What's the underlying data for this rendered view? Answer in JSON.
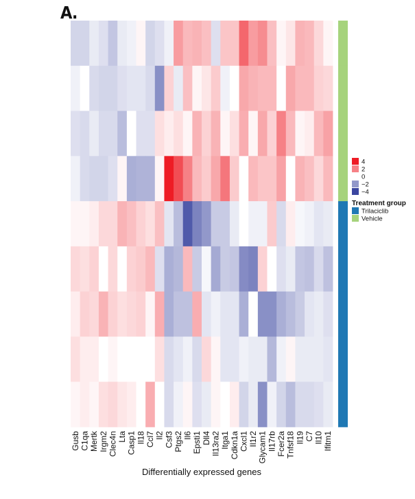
{
  "panel_label": "A.",
  "chart_data": {
    "type": "heatmap",
    "title": "",
    "xlabel": "Differentially expressed genes",
    "ylabel": "",
    "columns": [
      "Gusb",
      "C1qa",
      "Mertk",
      "Irgm2",
      "Clec4n",
      "Lta",
      "Casp1",
      "Il18",
      "Ccl7",
      "Il2",
      "Csf3",
      "Ptgs2",
      "Il6",
      "Epsti1",
      "Dll4",
      "Il13ra2",
      "Itga1",
      "Cdkn1a",
      "Cxcl1",
      "Il1r2",
      "Glycam1",
      "Il17rb",
      "Fcer2a",
      "Tnfsf18",
      "Il19",
      "C7",
      "Il10",
      "Ifitm1"
    ],
    "rows": [
      {
        "group": "Vehicle",
        "values": [
          -0.7,
          -0.7,
          -0.3,
          -0.5,
          -1.0,
          -0.3,
          -0.2,
          0.1,
          -0.7,
          -0.5,
          -0.2,
          1.5,
          1.0,
          1.1,
          0.9,
          -0.5,
          0.8,
          0.8,
          2.5,
          1.5,
          1.8,
          0.9,
          0.1,
          0.3,
          1.1,
          1.0,
          0.5,
          0.1
        ]
      },
      {
        "group": "Vehicle",
        "values": [
          -0.2,
          0.0,
          -0.6,
          -0.7,
          -0.7,
          -0.5,
          -0.4,
          -0.4,
          -0.6,
          -2.2,
          0.6,
          -0.3,
          0.9,
          0.1,
          0.3,
          0.7,
          -0.2,
          0.0,
          1.3,
          1.1,
          1.0,
          1.0,
          0.0,
          1.3,
          1.0,
          1.0,
          0.6,
          0.5
        ]
      },
      {
        "group": "Vehicle",
        "values": [
          -0.5,
          -0.6,
          -0.3,
          -0.6,
          -0.6,
          -1.2,
          0.0,
          -0.5,
          -0.5,
          0.4,
          0.2,
          0.4,
          0.1,
          1.1,
          0.6,
          1.1,
          0.1,
          0.4,
          1.2,
          0.1,
          1.3,
          0.6,
          2.0,
          1.0,
          0.1,
          0.2,
          1.0,
          1.4
        ]
      },
      {
        "group": "Vehicle",
        "values": [
          -0.2,
          -0.6,
          -0.7,
          -0.7,
          -0.5,
          0.1,
          -1.5,
          -1.4,
          -1.4,
          0.1,
          4.0,
          3.0,
          2.0,
          1.0,
          0.7,
          1.3,
          2.2,
          0.7,
          0.0,
          1.0,
          0.8,
          0.8,
          1.4,
          0.0,
          1.1,
          0.9,
          0.5,
          1.0
        ]
      },
      {
        "group": "Trilaciclib",
        "values": [
          0.1,
          0.1,
          0.2,
          0.5,
          0.5,
          1.1,
          0.9,
          0.6,
          0.4,
          0.9,
          -0.4,
          -1.2,
          -3.5,
          -2.5,
          -2.0,
          -0.9,
          -0.9,
          -0.3,
          0.0,
          -0.2,
          -0.2,
          0.7,
          -0.6,
          0.2,
          -0.1,
          -0.2,
          -0.4,
          -0.3
        ]
      },
      {
        "group": "Trilaciclib",
        "values": [
          0.5,
          0.4,
          0.6,
          0.0,
          0.5,
          0.0,
          0.6,
          0.7,
          1.0,
          -0.5,
          -1.5,
          -1.3,
          1.0,
          -0.9,
          -0.1,
          -1.6,
          -0.9,
          -1.0,
          -2.3,
          -2.5,
          0.6,
          0.0,
          -0.5,
          -0.3,
          -1.0,
          -1.1,
          -0.6,
          -1.1
        ]
      },
      {
        "group": "Trilaciclib",
        "values": [
          0.2,
          0.6,
          0.5,
          1.1,
          0.6,
          0.4,
          0.5,
          0.6,
          0.1,
          1.2,
          -1.5,
          -1.1,
          -1.1,
          1.2,
          -0.4,
          -0.2,
          -0.4,
          -0.4,
          -1.5,
          0.0,
          -2.2,
          -2.2,
          -1.5,
          -1.2,
          -0.9,
          -0.4,
          -0.3,
          -0.5
        ]
      },
      {
        "group": "Trilaciclib",
        "values": [
          0.4,
          0.2,
          0.2,
          0.0,
          0.1,
          0.0,
          0.0,
          0.0,
          0.0,
          0.4,
          -0.6,
          -0.4,
          -0.2,
          -0.6,
          0.5,
          0.1,
          -0.4,
          -0.4,
          -0.2,
          -0.3,
          -0.3,
          -1.3,
          -0.2,
          0.1,
          -0.3,
          -0.3,
          -0.3,
          -0.4
        ]
      },
      {
        "group": "Trilaciclib",
        "values": [
          0.1,
          0.2,
          0.1,
          0.4,
          0.5,
          0.3,
          0.2,
          0.0,
          1.2,
          0.0,
          -0.6,
          -0.2,
          0.1,
          -0.5,
          -0.3,
          0.1,
          0.0,
          0.2,
          -0.7,
          -0.3,
          -2.2,
          -0.2,
          -0.7,
          -1.2,
          -0.6,
          -0.6,
          -0.5,
          -0.3
        ]
      }
    ],
    "color_scale": {
      "range": [
        -4,
        4
      ],
      "ticks": [
        4,
        2,
        0,
        -2,
        -4
      ],
      "tick_labels": [
        "4",
        "2",
        "0",
        "−2",
        "−4"
      ],
      "low_color": "#3b46a0",
      "mid_color": "#ffffff",
      "high_color": "#ee1c25"
    },
    "legend": {
      "placement": "right",
      "group_title": "Treatment group",
      "groups": [
        {
          "name": "Trilaciclib",
          "color": "#1f78b4"
        },
        {
          "name": "Vehicle",
          "color": "#a6d37c"
        }
      ]
    }
  }
}
